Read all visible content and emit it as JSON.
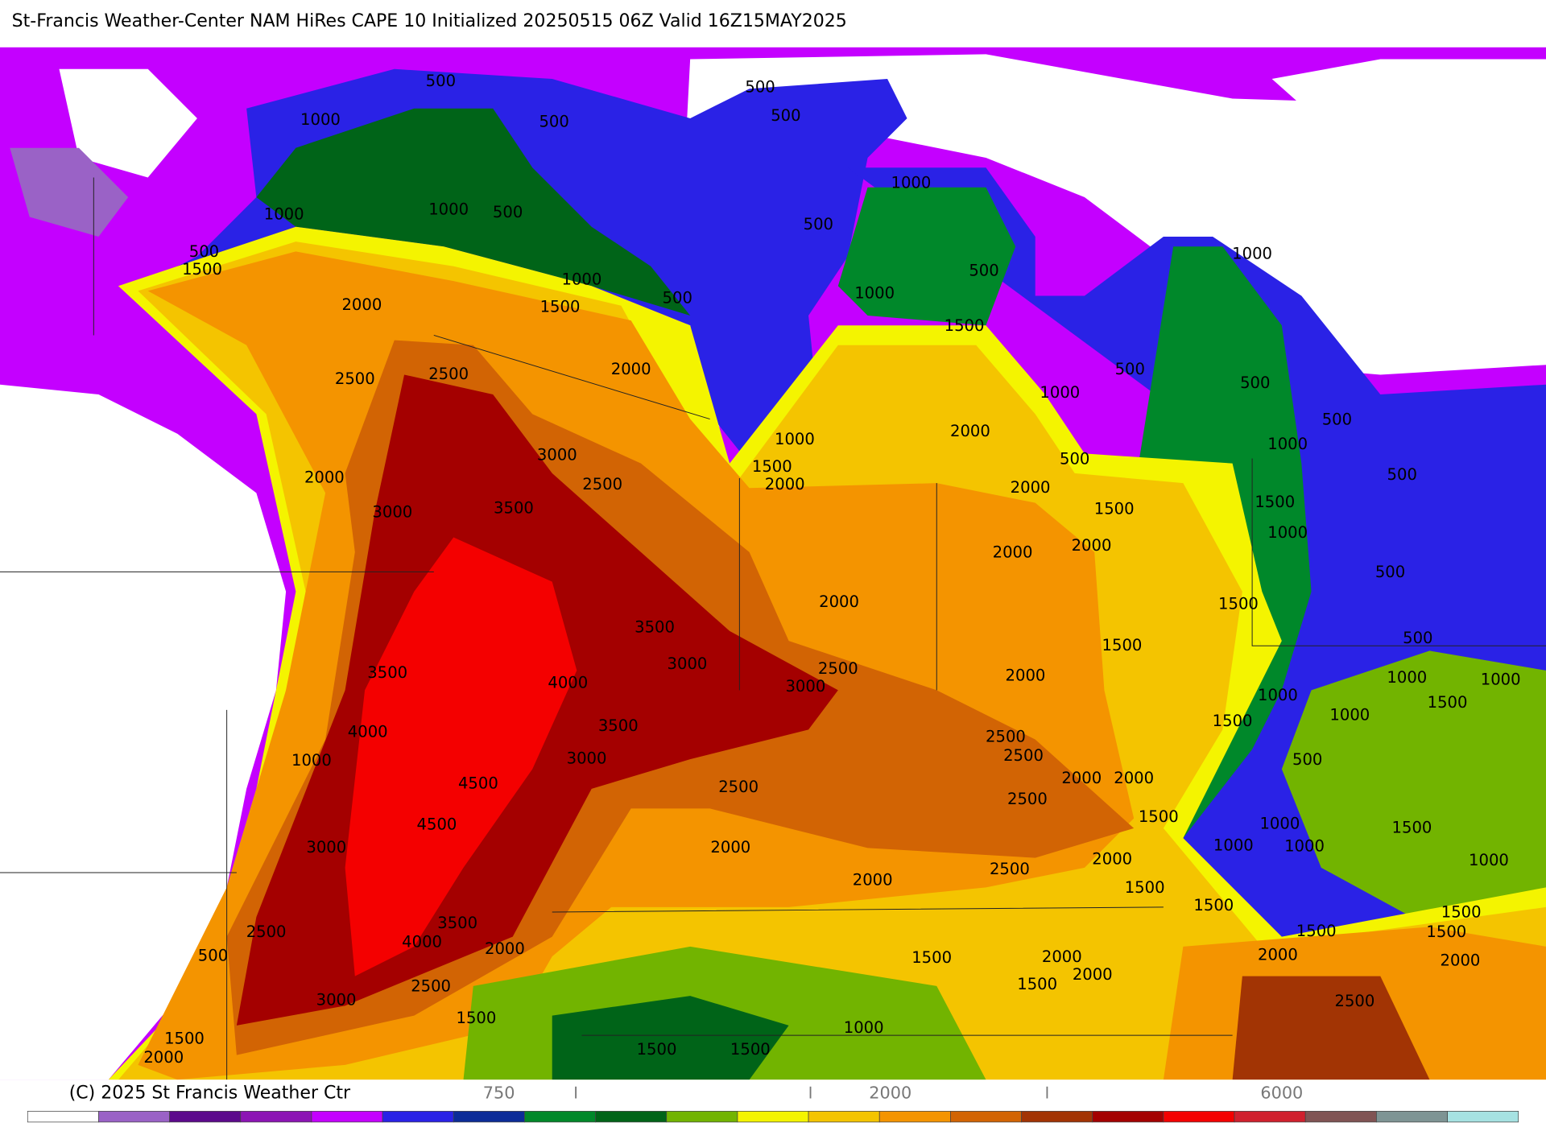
{
  "header": {
    "title": "St-Francis Weather-Center NAM HiRes CAPE  10 Initialized 20250515 06Z Valid 16Z15MAY2025"
  },
  "map": {
    "contour_labels": [
      "500",
      "500",
      "500",
      "500",
      "1000",
      "1000",
      "1000",
      "1000",
      "500",
      "500",
      "500",
      "1500",
      "1000",
      "500",
      "1000",
      "1000",
      "500",
      "1500",
      "2000",
      "1500",
      "2500",
      "2500",
      "2000",
      "500",
      "1000",
      "500",
      "500",
      "2000",
      "1000",
      "3000",
      "1500",
      "500",
      "1000",
      "2000",
      "2500",
      "2000",
      "2000",
      "500",
      "3000",
      "3500",
      "1500",
      "1500",
      "1000",
      "2000",
      "2000",
      "500",
      "2000",
      "1500",
      "3500",
      "500",
      "1500",
      "3000",
      "2500",
      "2000",
      "1000",
      "1000",
      "3500",
      "4000",
      "3000",
      "1000",
      "1500",
      "1500",
      "4000",
      "3500",
      "1000",
      "2500",
      "2500",
      "1000",
      "3000",
      "500",
      "4500",
      "2500",
      "2000",
      "2000",
      "2500",
      "1500",
      "1000",
      "4500",
      "1500",
      "1000",
      "1000",
      "3000",
      "2000",
      "2000",
      "2500",
      "1000",
      "2000",
      "1500",
      "1500",
      "1500",
      "3500",
      "2500",
      "1500",
      "1500",
      "4000",
      "2000",
      "500",
      "1500",
      "2000",
      "2000",
      "2000",
      "2000",
      "2500",
      "1500",
      "3000",
      "2500",
      "1500",
      "1000",
      "1500",
      "1500",
      "1500",
      "2000"
    ]
  },
  "colorbar": {
    "colors": [
      "#ffffff",
      "#9a62c6",
      "#5c0a8c",
      "#8c14b4",
      "#c400ff",
      "#2a22e6",
      "#0c2c98",
      "#00882a",
      "#006418",
      "#72b400",
      "#f4f400",
      "#f4c400",
      "#f49400",
      "#d26404",
      "#a23404",
      "#a40000",
      "#f40000",
      "#d0202e",
      "#805454",
      "#7e9494",
      "#a6e2e2"
    ],
    "ticks": [
      "750",
      "2000",
      "6000"
    ],
    "credit": "(C) 2025 St Francis Weather Ctr"
  }
}
